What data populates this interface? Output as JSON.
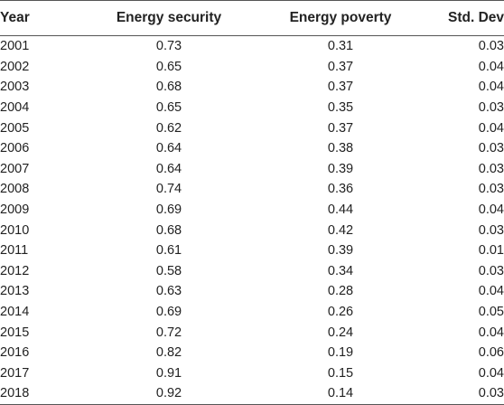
{
  "table": {
    "headers": {
      "year": "Year",
      "energy_security": "Energy security",
      "energy_poverty": "Energy poverty",
      "std_dev": "Std. Dev"
    },
    "rows": [
      {
        "year": "2001",
        "energy_security": "0.73",
        "energy_poverty": "0.31",
        "std_dev": "0.03"
      },
      {
        "year": "2002",
        "energy_security": "0.65",
        "energy_poverty": "0.37",
        "std_dev": "0.04"
      },
      {
        "year": "2003",
        "energy_security": "0.68",
        "energy_poverty": "0.37",
        "std_dev": "0.04"
      },
      {
        "year": "2004",
        "energy_security": "0.65",
        "energy_poverty": "0.35",
        "std_dev": "0.03"
      },
      {
        "year": "2005",
        "energy_security": "0.62",
        "energy_poverty": "0.37",
        "std_dev": "0.04"
      },
      {
        "year": "2006",
        "energy_security": "0.64",
        "energy_poverty": "0.38",
        "std_dev": "0.03"
      },
      {
        "year": "2007",
        "energy_security": "0.64",
        "energy_poverty": "0.39",
        "std_dev": "0.03"
      },
      {
        "year": "2008",
        "energy_security": "0.74",
        "energy_poverty": "0.36",
        "std_dev": "0.03"
      },
      {
        "year": "2009",
        "energy_security": "0.69",
        "energy_poverty": "0.44",
        "std_dev": "0.04"
      },
      {
        "year": "2010",
        "energy_security": "0.68",
        "energy_poverty": "0.42",
        "std_dev": "0.03"
      },
      {
        "year": "2011",
        "energy_security": "0.61",
        "energy_poverty": "0.39",
        "std_dev": "0.01"
      },
      {
        "year": "2012",
        "energy_security": "0.58",
        "energy_poverty": "0.34",
        "std_dev": "0.03"
      },
      {
        "year": "2013",
        "energy_security": "0.63",
        "energy_poverty": "0.28",
        "std_dev": "0.04"
      },
      {
        "year": "2014",
        "energy_security": "0.69",
        "energy_poverty": "0.26",
        "std_dev": "0.05"
      },
      {
        "year": "2015",
        "energy_security": "0.72",
        "energy_poverty": "0.24",
        "std_dev": "0.04"
      },
      {
        "year": "2016",
        "energy_security": "0.82",
        "energy_poverty": "0.19",
        "std_dev": "0.06"
      },
      {
        "year": "2017",
        "energy_security": "0.91",
        "energy_poverty": "0.15",
        "std_dev": "0.04"
      },
      {
        "year": "2018",
        "energy_security": "0.92",
        "energy_poverty": "0.14",
        "std_dev": "0.03"
      }
    ]
  }
}
